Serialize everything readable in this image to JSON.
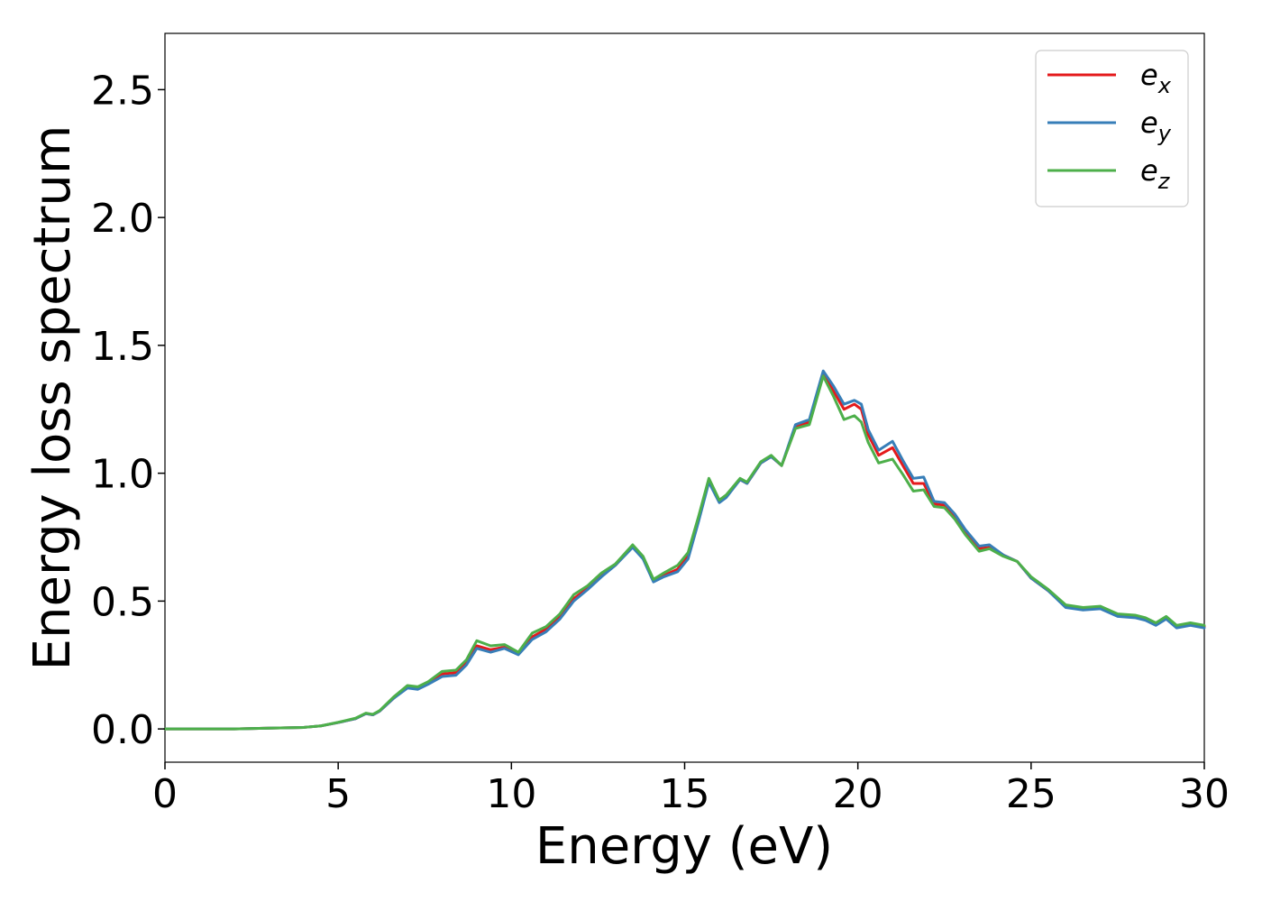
{
  "chart_data": {
    "type": "line",
    "xlabel": "Energy (eV)",
    "ylabel": "Energy loss spectrum",
    "xlim": [
      0,
      30
    ],
    "ylim": [
      -0.13,
      2.72
    ],
    "xticks": [
      0,
      5,
      10,
      15,
      20,
      25,
      30
    ],
    "yticks": [
      0.0,
      0.5,
      1.0,
      1.5,
      2.0,
      2.5
    ],
    "xtick_labels": [
      "0",
      "5",
      "10",
      "15",
      "20",
      "25",
      "30"
    ],
    "ytick_labels": [
      "0.0",
      "0.5",
      "1.0",
      "1.5",
      "2.0",
      "2.5"
    ],
    "grid": false,
    "legend_position": "top-right",
    "series": [
      {
        "name": "e",
        "subscript": "x",
        "color": "#e41a1c",
        "x": [
          0,
          1,
          2,
          3,
          4,
          4.5,
          5,
          5.5,
          5.8,
          6.0,
          6.2,
          6.6,
          7.0,
          7.3,
          7.6,
          8.0,
          8.4,
          8.7,
          9.0,
          9.4,
          9.8,
          10.2,
          10.6,
          11.0,
          11.4,
          11.8,
          12.2,
          12.6,
          13.0,
          13.5,
          13.8,
          14.1,
          14.4,
          14.8,
          15.1,
          15.4,
          15.7,
          16.0,
          16.2,
          16.6,
          16.8,
          17.2,
          17.5,
          17.8,
          18.2,
          18.6,
          19.0,
          19.3,
          19.6,
          19.9,
          20.1,
          20.3,
          20.6,
          21.0,
          21.3,
          21.6,
          21.9,
          22.2,
          22.5,
          22.8,
          23.1,
          23.5,
          23.8,
          24.2,
          24.6,
          25.0,
          25.5,
          26.0,
          26.5,
          27.0,
          27.5,
          28.0,
          28.3,
          28.6,
          28.9,
          29.2,
          29.6,
          30.0
        ],
        "values": [
          0.0,
          0.0,
          0.0,
          0.003,
          0.006,
          0.012,
          0.025,
          0.04,
          0.06,
          0.055,
          0.07,
          0.12,
          0.165,
          0.16,
          0.18,
          0.215,
          0.22,
          0.26,
          0.325,
          0.31,
          0.32,
          0.295,
          0.36,
          0.39,
          0.44,
          0.51,
          0.55,
          0.6,
          0.64,
          0.715,
          0.67,
          0.58,
          0.6,
          0.625,
          0.68,
          0.82,
          0.97,
          0.89,
          0.91,
          0.975,
          0.96,
          1.04,
          1.065,
          1.03,
          1.18,
          1.2,
          1.39,
          1.32,
          1.25,
          1.27,
          1.25,
          1.15,
          1.07,
          1.1,
          1.03,
          0.96,
          0.96,
          0.88,
          0.875,
          0.83,
          0.77,
          0.705,
          0.71,
          0.68,
          0.655,
          0.59,
          0.54,
          0.48,
          0.47,
          0.475,
          0.445,
          0.44,
          0.43,
          0.41,
          0.435,
          0.4,
          0.41,
          0.4
        ]
      },
      {
        "name": "e",
        "subscript": "y",
        "color": "#377eb8",
        "x": [
          0,
          1,
          2,
          3,
          4,
          4.5,
          5,
          5.5,
          5.8,
          6.0,
          6.2,
          6.6,
          7.0,
          7.3,
          7.6,
          8.0,
          8.4,
          8.7,
          9.0,
          9.4,
          9.8,
          10.2,
          10.6,
          11.0,
          11.4,
          11.8,
          12.2,
          12.6,
          13.0,
          13.5,
          13.8,
          14.1,
          14.4,
          14.8,
          15.1,
          15.4,
          15.7,
          16.0,
          16.2,
          16.6,
          16.8,
          17.2,
          17.5,
          17.8,
          18.2,
          18.6,
          19.0,
          19.3,
          19.6,
          19.9,
          20.1,
          20.3,
          20.6,
          21.0,
          21.3,
          21.6,
          21.9,
          22.2,
          22.5,
          22.8,
          23.1,
          23.5,
          23.8,
          24.2,
          24.6,
          25.0,
          25.5,
          26.0,
          26.5,
          27.0,
          27.5,
          28.0,
          28.3,
          28.6,
          28.9,
          29.2,
          29.6,
          30.0
        ],
        "values": [
          0.0,
          0.0,
          0.0,
          0.003,
          0.006,
          0.012,
          0.025,
          0.04,
          0.06,
          0.055,
          0.07,
          0.12,
          0.16,
          0.155,
          0.175,
          0.205,
          0.21,
          0.25,
          0.315,
          0.3,
          0.315,
          0.29,
          0.35,
          0.38,
          0.43,
          0.5,
          0.545,
          0.595,
          0.64,
          0.71,
          0.665,
          0.575,
          0.595,
          0.615,
          0.665,
          0.81,
          0.965,
          0.885,
          0.905,
          0.975,
          0.96,
          1.04,
          1.065,
          1.03,
          1.19,
          1.21,
          1.4,
          1.34,
          1.27,
          1.285,
          1.27,
          1.17,
          1.09,
          1.125,
          1.05,
          0.98,
          0.985,
          0.89,
          0.885,
          0.84,
          0.78,
          0.715,
          0.72,
          0.68,
          0.655,
          0.59,
          0.54,
          0.475,
          0.465,
          0.47,
          0.44,
          0.435,
          0.425,
          0.405,
          0.43,
          0.395,
          0.405,
          0.395
        ]
      },
      {
        "name": "e",
        "subscript": "z",
        "color": "#4daf4a",
        "x": [
          0,
          1,
          2,
          3,
          4,
          4.5,
          5,
          5.5,
          5.8,
          6.0,
          6.2,
          6.6,
          7.0,
          7.3,
          7.6,
          8.0,
          8.4,
          8.7,
          9.0,
          9.4,
          9.8,
          10.2,
          10.6,
          11.0,
          11.4,
          11.8,
          12.2,
          12.6,
          13.0,
          13.5,
          13.8,
          14.1,
          14.4,
          14.8,
          15.1,
          15.4,
          15.7,
          16.0,
          16.2,
          16.6,
          16.8,
          17.2,
          17.5,
          17.8,
          18.2,
          18.6,
          19.0,
          19.3,
          19.6,
          19.9,
          20.1,
          20.3,
          20.6,
          21.0,
          21.3,
          21.6,
          21.9,
          22.2,
          22.5,
          22.8,
          23.1,
          23.5,
          23.8,
          24.2,
          24.6,
          25.0,
          25.5,
          26.0,
          26.5,
          27.0,
          27.5,
          28.0,
          28.3,
          28.6,
          28.9,
          29.2,
          29.6,
          30.0
        ],
        "values": [
          0.0,
          0.0,
          0.0,
          0.003,
          0.006,
          0.012,
          0.026,
          0.042,
          0.062,
          0.057,
          0.072,
          0.125,
          0.17,
          0.165,
          0.185,
          0.225,
          0.23,
          0.27,
          0.345,
          0.325,
          0.33,
          0.3,
          0.375,
          0.4,
          0.45,
          0.525,
          0.56,
          0.61,
          0.645,
          0.72,
          0.675,
          0.585,
          0.61,
          0.64,
          0.69,
          0.83,
          0.98,
          0.895,
          0.915,
          0.98,
          0.965,
          1.045,
          1.07,
          1.03,
          1.175,
          1.19,
          1.38,
          1.3,
          1.21,
          1.225,
          1.2,
          1.12,
          1.04,
          1.055,
          0.995,
          0.93,
          0.935,
          0.87,
          0.865,
          0.82,
          0.76,
          0.695,
          0.705,
          0.675,
          0.655,
          0.595,
          0.545,
          0.485,
          0.475,
          0.48,
          0.45,
          0.445,
          0.435,
          0.415,
          0.44,
          0.405,
          0.415,
          0.405
        ]
      }
    ]
  }
}
